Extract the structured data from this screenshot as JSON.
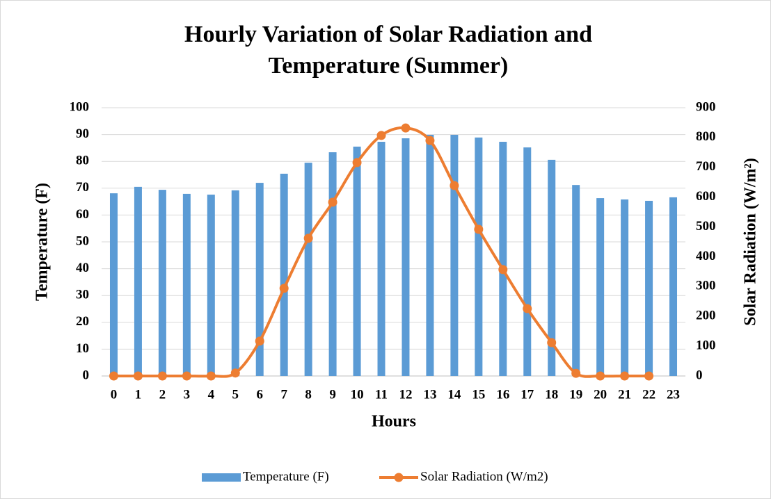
{
  "chart_data": {
    "type": "bar_line",
    "title": [
      "Hourly Variation of Solar Radiation and",
      "Temperature (Summer)"
    ],
    "x_label": "Hours",
    "y_label": "Temperature (F)",
    "y2_label": "Solar Radiation (W/m²)",
    "categories": [
      "0",
      "1",
      "2",
      "3",
      "4",
      "5",
      "6",
      "7",
      "8",
      "9",
      "10",
      "11",
      "12",
      "13",
      "14",
      "15",
      "16",
      "17",
      "18",
      "19",
      "20",
      "21",
      "22",
      "23"
    ],
    "series": [
      {
        "name": "Temperature (F)",
        "type": "bar",
        "color": "#5b9bd5",
        "axis": "y",
        "values": [
          68.1,
          70.5,
          69.4,
          67.9,
          67.6,
          69.2,
          72.0,
          75.4,
          79.5,
          83.4,
          85.5,
          87.3,
          88.6,
          89.9,
          89.9,
          88.9,
          87.3,
          85.2,
          80.6,
          71.2,
          66.3,
          65.8,
          65.3,
          66.6
        ]
      },
      {
        "name": "Solar Radiation (W/m2)",
        "type": "line",
        "color": "#ed7d31",
        "axis": "y2",
        "values": [
          0,
          0,
          0,
          0,
          0,
          10,
          117,
          294,
          462,
          583,
          716,
          807,
          832,
          790,
          639,
          492,
          357,
          226,
          112,
          9,
          0,
          0,
          0,
          null
        ]
      }
    ],
    "ylim": [
      0,
      100
    ],
    "yticks": [
      0,
      10,
      20,
      30,
      40,
      50,
      60,
      70,
      80,
      90,
      100
    ],
    "y2lim": [
      0,
      900
    ],
    "y2ticks": [
      0,
      100,
      200,
      300,
      400,
      500,
      600,
      700,
      800,
      900
    ],
    "grid": true,
    "legend": "bottom"
  }
}
